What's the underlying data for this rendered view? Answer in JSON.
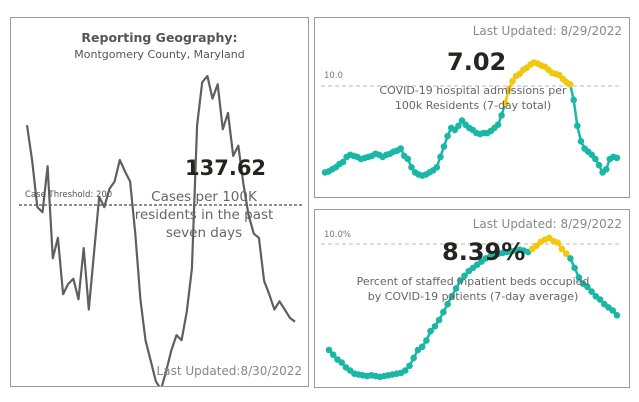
{
  "chart_data": [
    {
      "type": "line",
      "title": "Reporting Geography:",
      "subtitle": "Montgomery County, Maryland",
      "kpi": "137.62",
      "kpi_label": "Cases per 100K residents in the past seven days",
      "threshold_label": "Case Threshold: 200",
      "updated": "Last Updated:8/30/2022",
      "color": "#5f5f5f",
      "values": [
        330,
        295,
        250,
        245,
        290,
        200,
        220,
        165,
        175,
        180,
        160,
        210,
        150,
        205,
        260,
        250,
        268,
        275,
        296,
        285,
        275,
        225,
        160,
        120,
        100,
        80,
        72,
        90,
        110,
        125,
        120,
        148,
        190,
        330,
        372,
        378,
        356,
        370,
        326,
        342,
        300,
        310,
        272,
        242,
        224,
        220,
        178,
        165,
        150,
        158,
        150,
        142,
        138
      ]
    },
    {
      "type": "line",
      "kpi": "7.02",
      "kpi_label_line1": "COVID-19 hospital admissions per",
      "kpi_label_line2": "100k Residents (7-day total)",
      "reference_label": "10.0",
      "updated": "Last Updated: 8/29/2022",
      "colors": {
        "normal": "#1ab7a6",
        "highlight": "#f2c80f"
      },
      "values": [
        1.5,
        1.6,
        1.8,
        2.0,
        2.3,
        2.5,
        3.0,
        3.2,
        3.1,
        3.0,
        2.8,
        2.9,
        3.0,
        3.1,
        3.3,
        3.2,
        3.0,
        3.2,
        3.3,
        3.5,
        3.6,
        3.8,
        3.1,
        2.8,
        2.0,
        1.5,
        1.3,
        1.2,
        1.3,
        1.5,
        1.7,
        2.0,
        3.0,
        4.0,
        5.0,
        5.8,
        5.6,
        6.0,
        6.5,
        6.1,
        5.8,
        5.6,
        5.3,
        5.2,
        5.3,
        5.3,
        5.5,
        5.8,
        6.1,
        7.0,
        8.2,
        9.5,
        10.3,
        10.8,
        11.0,
        11.4,
        11.6,
        11.9,
        12.1,
        12.0,
        11.8,
        11.7,
        11.4,
        11.1,
        11.0,
        10.9,
        10.5,
        10.2,
        10.0,
        8.5,
        6.0,
        4.5,
        3.8,
        3.5,
        3.2,
        2.8,
        2.2,
        1.5,
        1.8,
        2.8,
        3.0,
        2.9
      ],
      "highlight_index_range": [
        50,
        68
      ]
    },
    {
      "type": "line",
      "kpi": "8.39%",
      "kpi_label_line1": "Percent of staffed inpatient beds occupied",
      "kpi_label_line2": "by COVID-19 patients (7-day average)",
      "reference_label": "10.0%",
      "updated": "Last Updated: 8/29/2022",
      "colors": {
        "normal": "#1ab7a6",
        "highlight": "#f2c80f"
      },
      "values": [
        3.4,
        3.1,
        2.8,
        2.6,
        2.3,
        2.1,
        1.9,
        1.85,
        1.8,
        1.75,
        1.8,
        1.75,
        1.7,
        1.75,
        1.8,
        1.85,
        1.9,
        1.95,
        2.1,
        2.4,
        2.9,
        3.4,
        3.6,
        4.0,
        4.6,
        4.9,
        5.3,
        5.8,
        6.3,
        6.8,
        7.3,
        7.8,
        8.1,
        8.4,
        8.6,
        8.8,
        9.0,
        9.2,
        9.3,
        9.4,
        9.5,
        9.55,
        9.6,
        9.65,
        9.7,
        9.75,
        9.7,
        9.6,
        9.8,
        10.0,
        10.25,
        10.4,
        10.5,
        10.3,
        10.2,
        9.8,
        9.5,
        9.2,
        8.6,
        8.0,
        7.6,
        7.4,
        7.1,
        6.8,
        6.6,
        6.3,
        6.1,
        5.9,
        5.6
      ],
      "highlight_index_range": [
        48,
        56
      ]
    }
  ]
}
